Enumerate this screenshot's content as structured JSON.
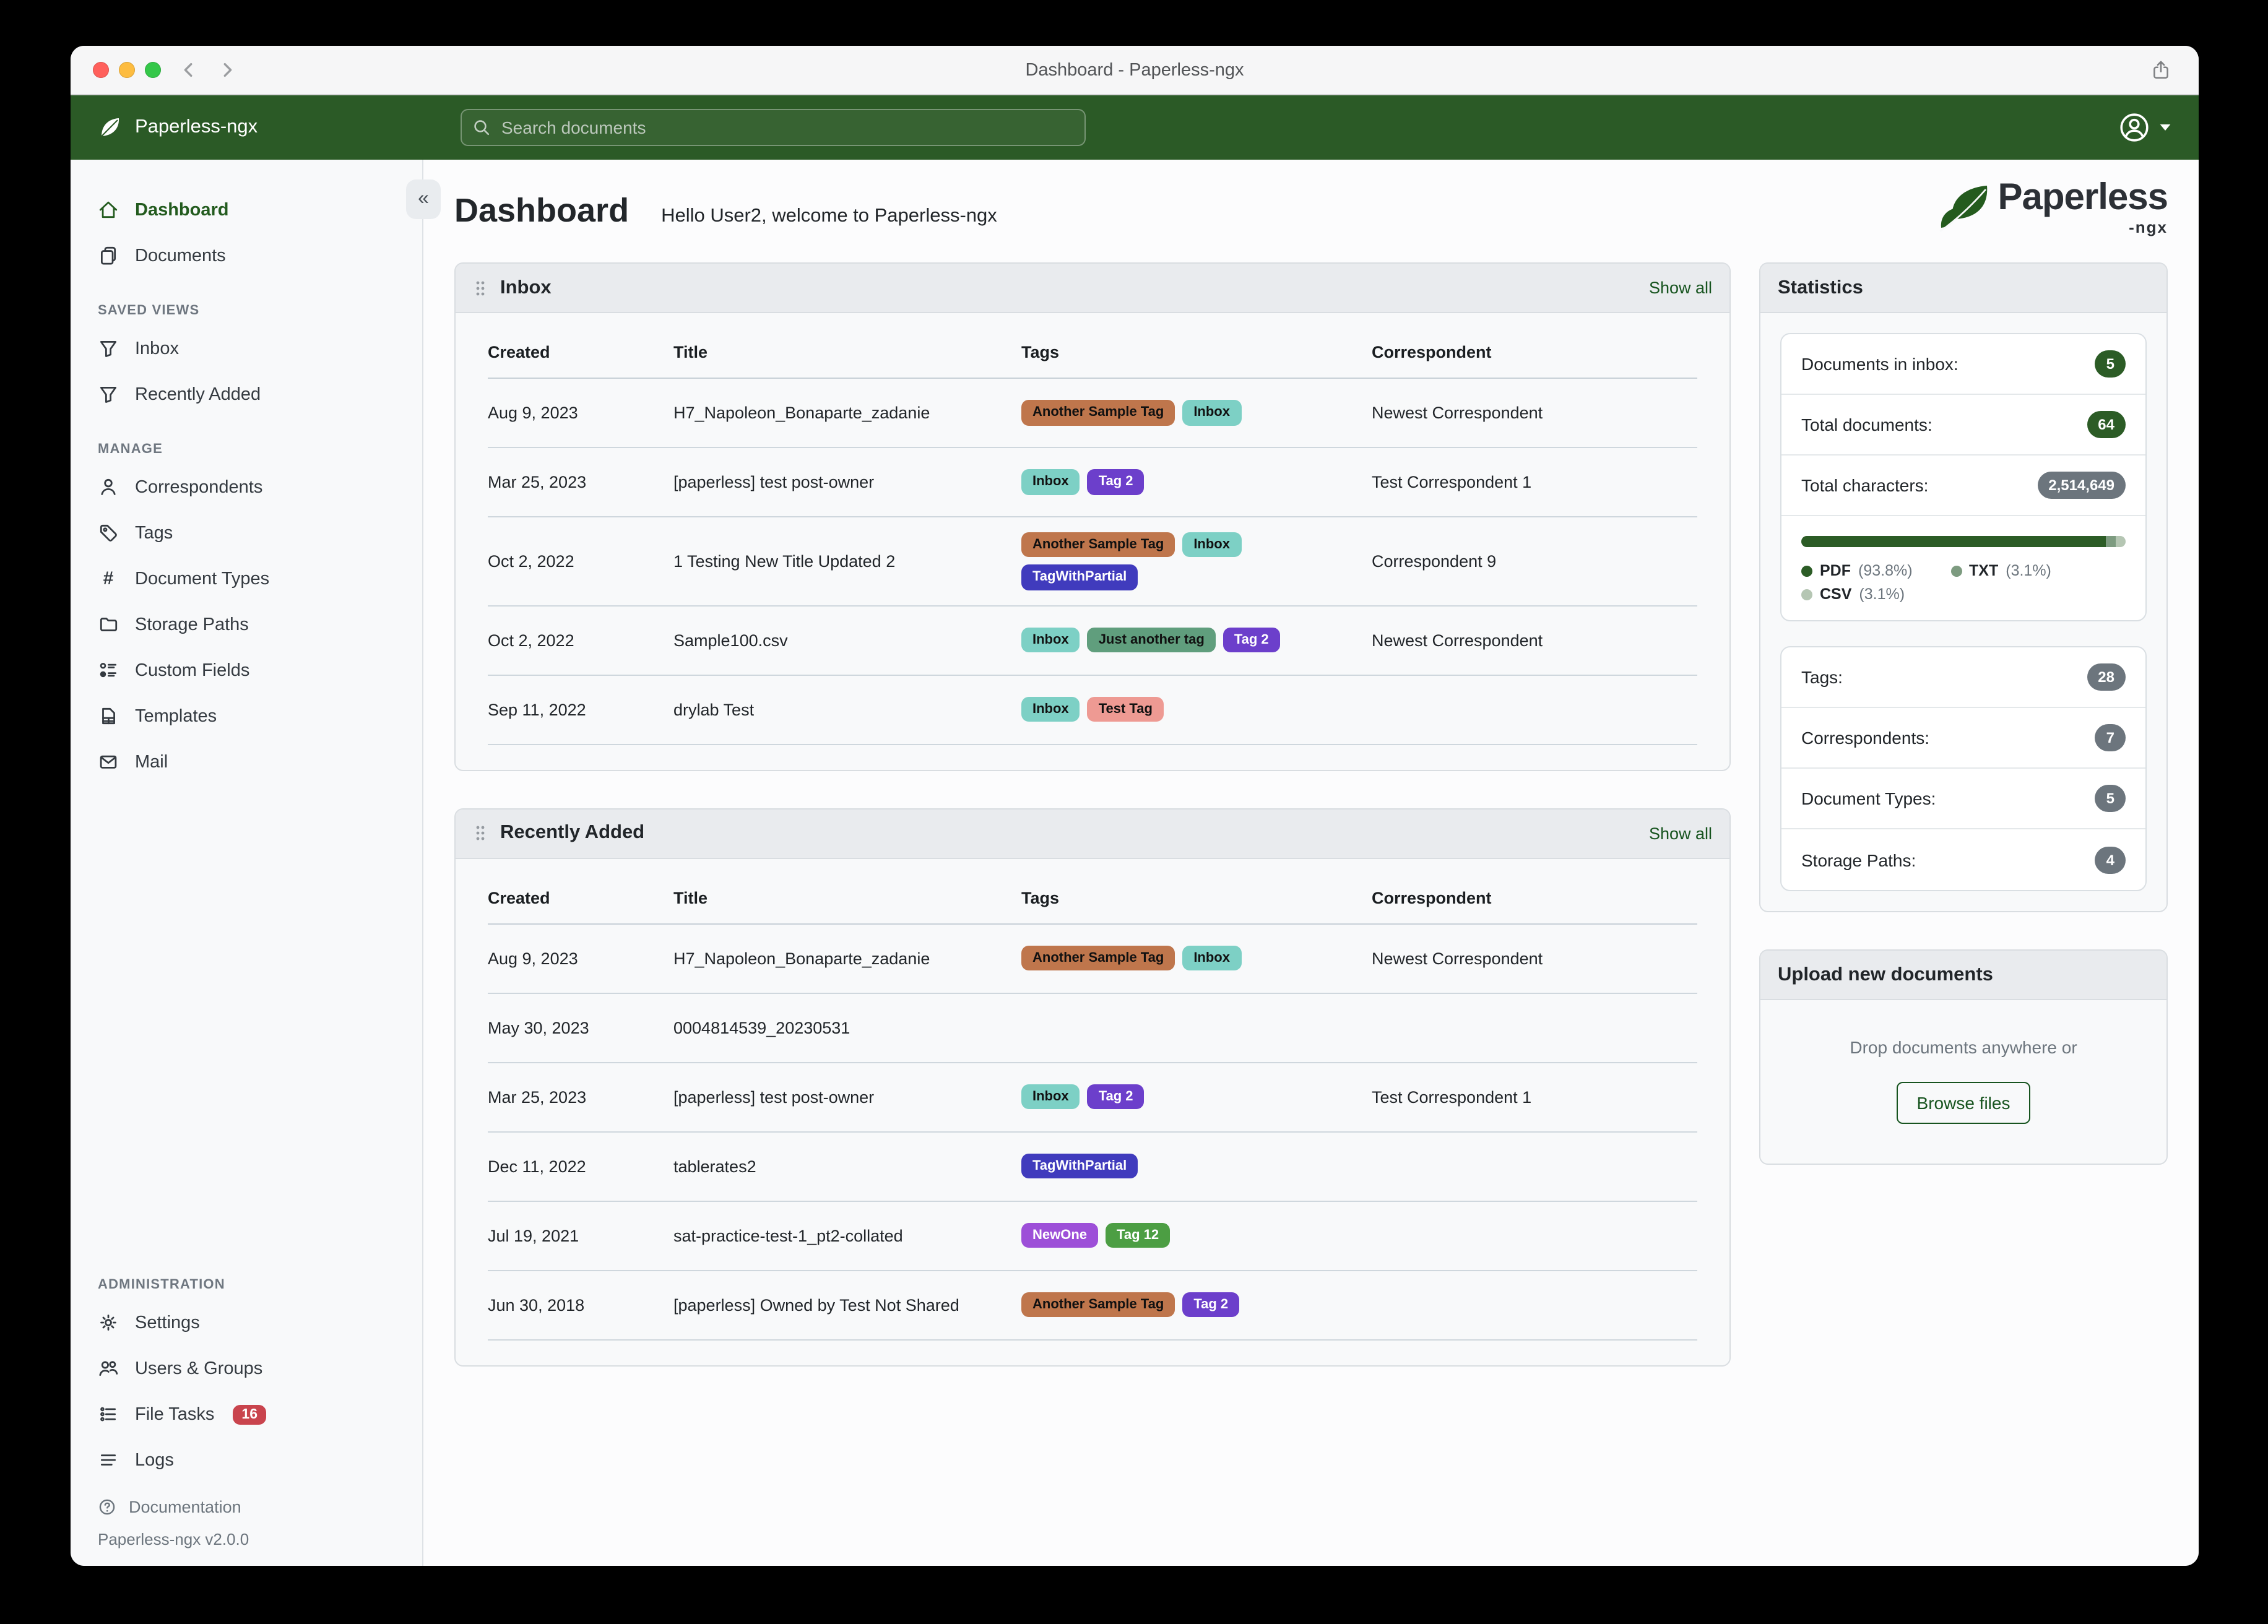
{
  "window": {
    "title": "Dashboard - Paperless-ngx"
  },
  "navbar": {
    "brand": "Paperless-ngx",
    "search_placeholder": "Search documents"
  },
  "sidebar": {
    "sections": [
      {
        "title": "",
        "position": "top",
        "items": [
          {
            "label": "Dashboard",
            "icon": "home",
            "active": true
          },
          {
            "label": "Documents",
            "icon": "documents"
          }
        ]
      },
      {
        "title": "SAVED VIEWS",
        "position": "top",
        "items": [
          {
            "label": "Inbox",
            "icon": "funnel"
          },
          {
            "label": "Recently Added",
            "icon": "funnel"
          }
        ]
      },
      {
        "title": "MANAGE",
        "position": "top",
        "items": [
          {
            "label": "Correspondents",
            "icon": "person"
          },
          {
            "label": "Tags",
            "icon": "tag"
          },
          {
            "label": "Document Types",
            "icon": "hash"
          },
          {
            "label": "Storage Paths",
            "icon": "folder"
          },
          {
            "label": "Custom Fields",
            "icon": "custom-fields"
          },
          {
            "label": "Templates",
            "icon": "template"
          },
          {
            "label": "Mail",
            "icon": "mail"
          }
        ]
      },
      {
        "title": "ADMINISTRATION",
        "position": "bottom",
        "items": [
          {
            "label": "Settings",
            "icon": "gear"
          },
          {
            "label": "Users & Groups",
            "icon": "users"
          },
          {
            "label": "File Tasks",
            "icon": "tasks",
            "badge": "16"
          },
          {
            "label": "Logs",
            "icon": "logs"
          }
        ]
      }
    ],
    "footer": {
      "documentation_label": "Documentation",
      "version": "Paperless-ngx v2.0.0"
    }
  },
  "page": {
    "title": "Dashboard",
    "greeting": "Hello User2, welcome to Paperless-ngx"
  },
  "logo": {
    "word": "Paperless",
    "suffix": "-ngx"
  },
  "tag_palette": {
    "Another Sample Tag": {
      "bg": "#bf764c",
      "fg": "#111111"
    },
    "Inbox": {
      "bg": "#7dd0c5",
      "fg": "#111111"
    },
    "Tag 2": {
      "bg": "#6c3fcb",
      "fg": "#ffffff"
    },
    "TagWithPartial": {
      "bg": "#403bbd",
      "fg": "#ffffff"
    },
    "Just another tag": {
      "bg": "#609e7d",
      "fg": "#111111"
    },
    "Test Tag": {
      "bg": "#ee9a93",
      "fg": "#111111"
    },
    "NewOne": {
      "bg": "#9d4fd8",
      "fg": "#ffffff"
    },
    "Tag 12": {
      "bg": "#4c9e43",
      "fg": "#ffffff"
    }
  },
  "widgets": {
    "inbox": {
      "title": "Inbox",
      "show_all": "Show all",
      "columns": [
        "Created",
        "Title",
        "Tags",
        "Correspondent"
      ],
      "rows": [
        {
          "created": "Aug 9, 2023",
          "title": "H7_Napoleon_Bonaparte_zadanie",
          "tags": [
            "Another Sample Tag",
            "Inbox"
          ],
          "correspondent": "Newest Correspondent"
        },
        {
          "created": "Mar 25, 2023",
          "title": "[paperless] test post-owner",
          "tags": [
            "Inbox",
            "Tag 2"
          ],
          "correspondent": "Test Correspondent 1"
        },
        {
          "created": "Oct 2, 2022",
          "title": "1 Testing New Title Updated 2",
          "tags": [
            "Another Sample Tag",
            "Inbox",
            "TagWithPartial"
          ],
          "correspondent": "Correspondent 9"
        },
        {
          "created": "Oct 2, 2022",
          "title": "Sample100.csv",
          "tags": [
            "Inbox",
            "Just another tag",
            "Tag 2"
          ],
          "correspondent": "Newest Correspondent"
        },
        {
          "created": "Sep 11, 2022",
          "title": "drylab Test",
          "tags": [
            "Inbox",
            "Test Tag"
          ],
          "correspondent": ""
        }
      ]
    },
    "recent": {
      "title": "Recently Added",
      "show_all": "Show all",
      "columns": [
        "Created",
        "Title",
        "Tags",
        "Correspondent"
      ],
      "rows": [
        {
          "created": "Aug 9, 2023",
          "title": "H7_Napoleon_Bonaparte_zadanie",
          "tags": [
            "Another Sample Tag",
            "Inbox"
          ],
          "correspondent": "Newest Correspondent"
        },
        {
          "created": "May 30, 2023",
          "title": "0004814539_20230531",
          "tags": [],
          "correspondent": ""
        },
        {
          "created": "Mar 25, 2023",
          "title": "[paperless] test post-owner",
          "tags": [
            "Inbox",
            "Tag 2"
          ],
          "correspondent": "Test Correspondent 1"
        },
        {
          "created": "Dec 11, 2022",
          "title": "tablerates2",
          "tags": [
            "TagWithPartial"
          ],
          "correspondent": ""
        },
        {
          "created": "Jul 19, 2021",
          "title": "sat-practice-test-1_pt2-collated",
          "tags": [
            "NewOne",
            "Tag 12"
          ],
          "correspondent": ""
        },
        {
          "created": "Jun 30, 2018",
          "title": "[paperless] Owned by Test Not Shared",
          "tags": [
            "Another Sample Tag",
            "Tag 2"
          ],
          "correspondent": ""
        }
      ]
    }
  },
  "statistics": {
    "title": "Statistics",
    "primary": [
      {
        "label": "Documents in inbox:",
        "value": "5",
        "style": "green"
      },
      {
        "label": "Total documents:",
        "value": "64",
        "style": "green"
      },
      {
        "label": "Total characters:",
        "value": "2,514,649",
        "style": "gray"
      }
    ],
    "distribution": [
      {
        "label": "PDF",
        "pct": 93.8,
        "pct_label": "(93.8%)",
        "color": "#2c5c26"
      },
      {
        "label": "TXT",
        "pct": 3.1,
        "pct_label": "(3.1%)",
        "color": "#7d9b80"
      },
      {
        "label": "CSV",
        "pct": 3.1,
        "pct_label": "(3.1%)",
        "color": "#b5c6b3"
      }
    ],
    "secondary": [
      {
        "label": "Tags:",
        "value": "28",
        "style": "gray"
      },
      {
        "label": "Correspondents:",
        "value": "7",
        "style": "gray"
      },
      {
        "label": "Document Types:",
        "value": "5",
        "style": "gray"
      },
      {
        "label": "Storage Paths:",
        "value": "4",
        "style": "gray"
      }
    ]
  },
  "upload": {
    "title": "Upload new documents",
    "drop_text": "Drop documents anywhere or",
    "button_label": "Browse files"
  },
  "colors": {
    "navbar_green": "#2b5a26",
    "accent_green": "#17541f",
    "badge_green": "#2c5c26",
    "badge_gray": "#6c757d",
    "badge_red": "#c9444d"
  }
}
